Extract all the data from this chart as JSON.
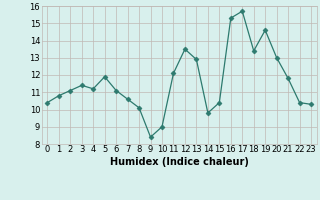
{
  "x": [
    0,
    1,
    2,
    3,
    4,
    5,
    6,
    7,
    8,
    9,
    10,
    11,
    12,
    13,
    14,
    15,
    16,
    17,
    18,
    19,
    20,
    21,
    22,
    23
  ],
  "y": [
    10.4,
    10.8,
    11.1,
    11.4,
    11.2,
    11.9,
    11.1,
    10.6,
    10.1,
    8.4,
    9.0,
    12.1,
    13.5,
    12.9,
    9.8,
    10.4,
    15.3,
    15.7,
    13.4,
    14.6,
    13.0,
    11.8,
    10.4,
    10.3
  ],
  "xlabel": "Humidex (Indice chaleur)",
  "ylim": [
    8,
    16
  ],
  "xlim_min": -0.5,
  "xlim_max": 23.5,
  "yticks": [
    8,
    9,
    10,
    11,
    12,
    13,
    14,
    15,
    16
  ],
  "xticks": [
    0,
    1,
    2,
    3,
    4,
    5,
    6,
    7,
    8,
    9,
    10,
    11,
    12,
    13,
    14,
    15,
    16,
    17,
    18,
    19,
    20,
    21,
    22,
    23
  ],
  "line_color": "#2d7a6e",
  "marker": "D",
  "marker_size": 2.5,
  "bg_color": "#d8f0ed",
  "grid_color": "#c0b8b4",
  "tick_fontsize": 6,
  "xlabel_fontsize": 7
}
